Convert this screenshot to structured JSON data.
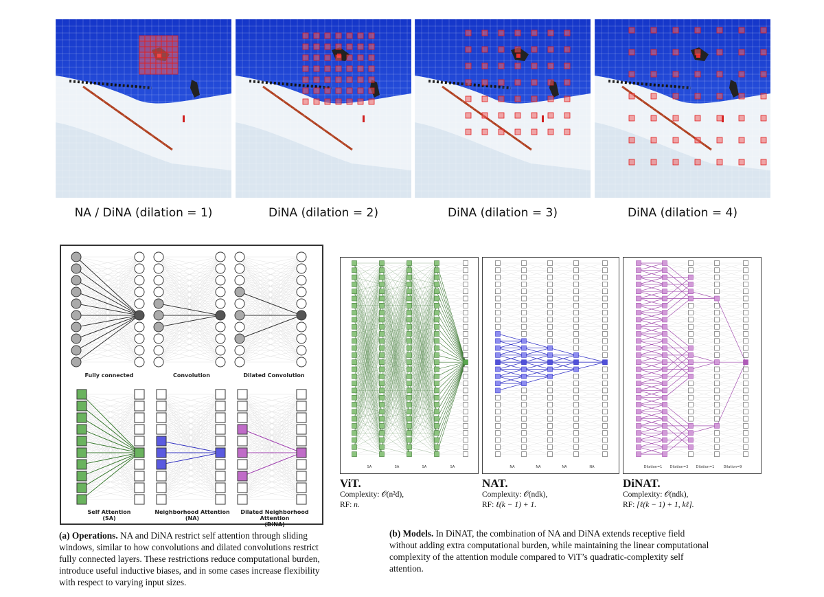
{
  "top_panels": [
    {
      "label": "NA / DiNA (dilation = 1)",
      "dilation": 1
    },
    {
      "label": "DiNA (dilation = 2)",
      "dilation": 2
    },
    {
      "label": "DiNA (dilation = 3)",
      "dilation": 3
    },
    {
      "label": "DiNA (dilation = 4)",
      "dilation": 4
    }
  ],
  "operations": {
    "top_labels": [
      "Fully connected",
      "Convolution",
      "Dilated Convolution"
    ],
    "bottom_labels": [
      {
        "line1": "Self Attention",
        "line2": "(SA)"
      },
      {
        "line1": "Neighborhood Attention",
        "line2": "(NA)"
      },
      {
        "line1": "Dilated Neighborhood Attention",
        "line2": "(DiNA)"
      }
    ],
    "caption_head": "(a) Operations.",
    "caption_body": " NA and DiNA restrict self attention through sliding windows, similar to how convolutions and dilated convolutions restrict fully connected layers. These restrictions reduce computational burden, introduce useful inductive biases, and in some cases increase flexibility with respect to varying input sizes."
  },
  "models": [
    {
      "name": "ViT",
      "complexity_label": "Complexity:",
      "complexity": "𝒪(n²d),",
      "rf_label": "RF:",
      "rf": "n.",
      "layer_labels": [
        "SA",
        "SA",
        "SA",
        "SA"
      ],
      "color": "#5aa84f"
    },
    {
      "name": "NAT",
      "complexity_label": "Complexity:",
      "complexity": "𝒪(ndk),",
      "rf_label": "RF:",
      "rf": "ℓ(k − 1) + 1.",
      "layer_labels": [
        "NA",
        "NA",
        "NA",
        "NA"
      ],
      "color": "#5050d8"
    },
    {
      "name": "DiNAT",
      "complexity_label": "Complexity:",
      "complexity": "𝒪(ndk),",
      "rf_label": "RF:",
      "rf": "[ℓ(k − 1) + 1, kℓ].",
      "layer_labels": [
        "Dilation=1",
        "Dilation=3",
        "Dilation=1",
        "Dilation=9"
      ],
      "color": "#b05ab8"
    }
  ],
  "models_caption_head": "(b) Models.",
  "models_caption_body": " In DiNAT, the combination of NA and DiNA extends receptive field without adding extra computational burden, while maintaining the linear computational complexity of the attention module compared to ViT’s quadratic-complexity self attention.",
  "colors": {
    "sa_green": "#6ab35e",
    "na_blue": "#5a5ae0",
    "dina_purple": "#c06cc8",
    "grid_red": "#e04040",
    "sky": "#1a3fd8"
  }
}
